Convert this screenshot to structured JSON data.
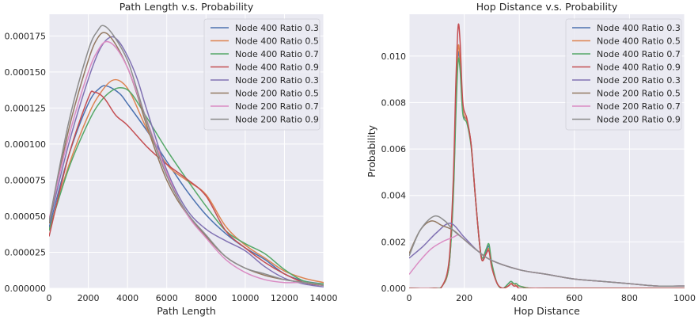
{
  "chart_data": [
    {
      "type": "line",
      "title": "Path Length v.s. Probability",
      "xlabel": "Path Length",
      "ylabel": "",
      "xlim": [
        0,
        14000
      ],
      "ylim": [
        0,
        0.00019
      ],
      "xticks": [
        0,
        2000,
        4000,
        6000,
        8000,
        10000,
        12000,
        14000
      ],
      "xtick_labels": [
        "0",
        "2000",
        "4000",
        "6000",
        "8000",
        "10000",
        "12000",
        "14000"
      ],
      "yticks": [
        0,
        2.5e-05,
        5e-05,
        7.5e-05,
        0.0001,
        0.000125,
        0.00015,
        0.000175
      ],
      "ytick_labels": [
        "0.000000",
        "0.000025",
        "0.000050",
        "0.000075",
        "0.000100",
        "0.000125",
        "0.000150",
        "0.000175"
      ],
      "grid": true,
      "legend_position": "top-right",
      "series": [
        {
          "name": "Node 400 Ratio 0.3",
          "color": "#4c72b0",
          "x": [
            0,
            1000,
            2000,
            2600,
            3000,
            3600,
            4000,
            5000,
            6000,
            7000,
            8000,
            9000,
            10000,
            11000,
            12000,
            13000,
            14000
          ],
          "y": [
            4.2e-05,
            9.2e-05,
            0.000128,
            0.000139,
            0.00014,
            0.000135,
            0.000128,
            0.000109,
            8.8e-05,
            6.8e-05,
            5.1e-05,
            3.8e-05,
            2.8e-05,
            2e-05,
            1e-05,
            5e-06,
            3e-06
          ]
        },
        {
          "name": "Node 400 Ratio 0.5",
          "color": "#dd8452",
          "x": [
            0,
            1000,
            2000,
            2600,
            3200,
            3700,
            4200,
            5000,
            6000,
            7000,
            8000,
            9000,
            10000,
            11000,
            12000,
            13000,
            14000
          ],
          "y": [
            4e-05,
            8.5e-05,
            0.00012,
            0.000135,
            0.000144,
            0.000143,
            0.000134,
            0.00011,
            8.6e-05,
            7.5e-05,
            6.5e-05,
            4.3e-05,
            3e-05,
            2.1e-05,
            1.2e-05,
            7e-06,
            4e-06
          ]
        },
        {
          "name": "Node 400 Ratio 0.7",
          "color": "#55a868",
          "x": [
            0,
            1000,
            2000,
            2600,
            3200,
            3700,
            4200,
            5000,
            6000,
            7000,
            8000,
            9000,
            10000,
            11000,
            12000,
            13000,
            14000
          ],
          "y": [
            4e-05,
            8.3e-05,
            0.000115,
            0.000129,
            0.000137,
            0.000139,
            0.000135,
            0.000118,
            9.6e-05,
            7.6e-05,
            5.7e-05,
            4e-05,
            3.1e-05,
            2.4e-05,
            1.3e-05,
            5e-06,
            3e-06
          ]
        },
        {
          "name": "Node 400 Ratio 0.9",
          "color": "#c44e52",
          "x": [
            0,
            1000,
            2000,
            2300,
            2800,
            3400,
            4000,
            5000,
            6000,
            7000,
            8000,
            9000,
            10000,
            11000,
            12000,
            13000,
            14000
          ],
          "y": [
            3.6e-05,
            9.2e-05,
            0.000132,
            0.000136,
            0.000132,
            0.00012,
            0.000113,
            9.8e-05,
            8.6e-05,
            7.6e-05,
            6.4e-05,
            4e-05,
            2.8e-05,
            1.8e-05,
            1e-05,
            4e-06,
            2e-06
          ]
        },
        {
          "name": "Node 200 Ratio 0.3",
          "color": "#8172b3",
          "x": [
            0,
            1000,
            2000,
            2600,
            3100,
            3500,
            4000,
            4500,
            5000,
            6000,
            7000,
            8000,
            9000,
            10000,
            11000,
            12000,
            13000,
            14000
          ],
          "y": [
            4.5e-05,
            0.0001,
            0.000145,
            0.000166,
            0.000174,
            0.000172,
            0.000161,
            0.000145,
            0.000123,
            8.2e-05,
            5.5e-05,
            4.1e-05,
            3.3e-05,
            2.6e-05,
            1.5e-05,
            7e-06,
            3e-06,
            1e-06
          ]
        },
        {
          "name": "Node 200 Ratio 0.5",
          "color": "#937860",
          "x": [
            0,
            1000,
            2000,
            2500,
            2900,
            3400,
            4000,
            4500,
            5000,
            6000,
            7000,
            8000,
            9000,
            10000,
            11000,
            12000,
            13000,
            14000
          ],
          "y": [
            4.5e-05,
            0.00011,
            0.000158,
            0.000174,
            0.000177,
            0.000169,
            0.000153,
            0.000134,
            0.000112,
            7.5e-05,
            5.2e-05,
            3.6e-05,
            2.2e-05,
            1.4e-05,
            9e-06,
            6e-06,
            4e-06,
            2e-06
          ]
        },
        {
          "name": "Node 200 Ratio 0.7",
          "color": "#da8bc3",
          "x": [
            0,
            1000,
            2000,
            2500,
            2900,
            3400,
            4000,
            4500,
            5000,
            6000,
            7000,
            8000,
            9000,
            10000,
            11000,
            12000,
            13000,
            14000
          ],
          "y": [
            4.8e-05,
            0.000105,
            0.00015,
            0.000165,
            0.000171,
            0.000167,
            0.000153,
            0.000135,
            0.000116,
            8e-05,
            5.2e-05,
            3.5e-05,
            2e-05,
            1.1e-05,
            6e-06,
            4e-06,
            4e-06,
            2e-06
          ]
        },
        {
          "name": "Node 200 Ratio 0.9",
          "color": "#8c8c8c",
          "x": [
            0,
            1000,
            2000,
            2500,
            2800,
            3300,
            4000,
            4500,
            5000,
            6000,
            7000,
            8000,
            9000,
            10000,
            11000,
            12000,
            13000,
            14000
          ],
          "y": [
            4.6e-05,
            0.000115,
            0.000165,
            0.000179,
            0.000182,
            0.000175,
            0.000158,
            0.000137,
            0.000115,
            7.8e-05,
            5.3e-05,
            3.7e-05,
            2.2e-05,
            1.4e-05,
            1e-05,
            6e-06,
            4e-06,
            2e-06
          ]
        }
      ]
    },
    {
      "type": "line",
      "title": "Hop Distance v.s. Probability",
      "xlabel": "Hop Distance",
      "ylabel": "Probability",
      "xlim": [
        0,
        1000
      ],
      "ylim": [
        0,
        0.0118
      ],
      "xticks": [
        0,
        200,
        400,
        600,
        800,
        1000
      ],
      "xtick_labels": [
        "0",
        "200",
        "400",
        "600",
        "800",
        "1000"
      ],
      "yticks": [
        0,
        0.002,
        0.004,
        0.006,
        0.008,
        0.01
      ],
      "ytick_labels": [
        "0.000",
        "0.002",
        "0.004",
        "0.006",
        "0.008",
        "0.010"
      ],
      "grid": true,
      "legend_position": "top-right",
      "series": [
        {
          "name": "Node 400 Ratio 0.3",
          "color": "#4c72b0",
          "x": [
            0,
            90,
            120,
            145,
            160,
            170,
            178,
            185,
            195,
            210,
            225,
            240,
            255,
            265,
            280,
            290,
            300,
            320,
            340,
            360,
            370,
            380,
            390,
            400,
            440,
            500,
            600,
            800,
            1000
          ],
          "y": [
            0,
            0,
            0.0001,
            0.001,
            0.004,
            0.008,
            0.0101,
            0.0096,
            0.0076,
            0.0072,
            0.0062,
            0.004,
            0.002,
            0.0012,
            0.0016,
            0.0018,
            0.001,
            0.0002,
            0,
            0.0002,
            0.0003,
            0.0002,
            0.0002,
            0.0001,
            0,
            0,
            0,
            0,
            0
          ]
        },
        {
          "name": "Node 400 Ratio 0.5",
          "color": "#dd8452",
          "x": [
            0,
            90,
            120,
            145,
            160,
            170,
            178,
            185,
            195,
            210,
            225,
            240,
            255,
            265,
            280,
            290,
            300,
            320,
            340,
            360,
            370,
            380,
            390,
            400,
            440,
            500,
            600,
            800,
            1000
          ],
          "y": [
            0,
            0,
            0.0001,
            0.001,
            0.0042,
            0.0082,
            0.0104,
            0.0098,
            0.0077,
            0.0072,
            0.0062,
            0.004,
            0.002,
            0.0012,
            0.0015,
            0.0017,
            0.001,
            0.0002,
            0,
            0.0001,
            0.0002,
            0.0002,
            0.0001,
            0.0001,
            0,
            0,
            0,
            0,
            0
          ]
        },
        {
          "name": "Node 400 Ratio 0.7",
          "color": "#55a868",
          "x": [
            0,
            90,
            120,
            145,
            160,
            170,
            178,
            185,
            195,
            210,
            225,
            240,
            255,
            265,
            280,
            290,
            300,
            320,
            340,
            360,
            370,
            380,
            390,
            400,
            440,
            500,
            600,
            800,
            1000
          ],
          "y": [
            0,
            0,
            0.0001,
            0.001,
            0.0038,
            0.0076,
            0.0098,
            0.0094,
            0.0075,
            0.0071,
            0.0061,
            0.004,
            0.002,
            0.0013,
            0.0017,
            0.0019,
            0.0011,
            0.0002,
            0,
            0.0002,
            0.0003,
            0.0002,
            0.0002,
            0.0001,
            0,
            0,
            0,
            0,
            0
          ]
        },
        {
          "name": "Node 400 Ratio 0.9",
          "color": "#c44e52",
          "x": [
            0,
            90,
            120,
            145,
            160,
            170,
            178,
            185,
            195,
            210,
            225,
            240,
            255,
            265,
            280,
            290,
            300,
            320,
            340,
            360,
            370,
            380,
            390,
            400,
            440,
            500,
            600,
            800,
            1000
          ],
          "y": [
            0,
            0,
            0.0001,
            0.0012,
            0.0046,
            0.009,
            0.0113,
            0.0106,
            0.008,
            0.0073,
            0.0062,
            0.004,
            0.002,
            0.0012,
            0.0015,
            0.0016,
            0.0009,
            0.0002,
            0,
            0.0001,
            0.0002,
            0.0001,
            0.0001,
            0,
            0,
            0,
            0,
            0,
            0
          ]
        },
        {
          "name": "Node 200 Ratio 0.3",
          "color": "#8172b3",
          "x": [
            0,
            50,
            100,
            150,
            200,
            250,
            300,
            400,
            500,
            600,
            700,
            800,
            900,
            1000
          ],
          "y": [
            0.0013,
            0.0018,
            0.0024,
            0.0028,
            0.0022,
            0.0016,
            0.0012,
            0.0008,
            0.0006,
            0.0004,
            0.0003,
            0.0002,
            0.0001,
            0.0001
          ]
        },
        {
          "name": "Node 200 Ratio 0.5",
          "color": "#937860",
          "x": [
            0,
            40,
            80,
            120,
            160,
            200,
            250,
            300,
            400,
            500,
            600,
            700,
            800,
            900,
            1000
          ],
          "y": [
            0.0015,
            0.0025,
            0.0029,
            0.0027,
            0.0025,
            0.0021,
            0.0016,
            0.0012,
            0.0008,
            0.0006,
            0.0004,
            0.0003,
            0.0002,
            0.0001,
            0.0001
          ]
        },
        {
          "name": "Node 200 Ratio 0.7",
          "color": "#da8bc3",
          "x": [
            0,
            40,
            80,
            120,
            160,
            180,
            200,
            250,
            300,
            400,
            500,
            600,
            700,
            800,
            900,
            1000
          ],
          "y": [
            0.0006,
            0.0012,
            0.0017,
            0.002,
            0.0022,
            0.0023,
            0.0021,
            0.0016,
            0.0012,
            0.0008,
            0.0006,
            0.0004,
            0.0003,
            0.0002,
            0.0001,
            0.0001
          ]
        },
        {
          "name": "Node 200 Ratio 0.9",
          "color": "#8c8c8c",
          "x": [
            0,
            40,
            90,
            130,
            160,
            200,
            250,
            300,
            400,
            500,
            600,
            700,
            800,
            900,
            1000
          ],
          "y": [
            0.0014,
            0.0025,
            0.0031,
            0.0029,
            0.0025,
            0.0021,
            0.0016,
            0.0012,
            0.0008,
            0.0006,
            0.0004,
            0.0003,
            0.0002,
            0.0001,
            0.0001
          ]
        }
      ]
    }
  ]
}
